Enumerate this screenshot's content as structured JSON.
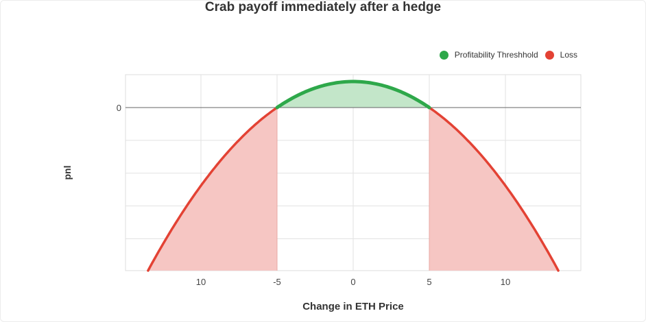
{
  "chart_data": {
    "type": "area",
    "title": "Crab payoff immediately after a hedge",
    "xlabel": "Change in ETH Price",
    "ylabel": "pnl",
    "x_tick_labels": [
      "10",
      "-5",
      "0",
      "5",
      "10"
    ],
    "y_tick_labels": [
      "0"
    ],
    "xlim": [
      -15,
      15
    ],
    "breakeven_points": [
      -5,
      5
    ],
    "curve": {
      "shape": "inverted parabola",
      "vertex": [
        0,
        1
      ],
      "zero_crossings": [
        -5,
        5
      ]
    },
    "series": [
      {
        "name": "Profitability Threshhold",
        "color": "#2ea84a",
        "fill": "#c3e6c9",
        "x_range": [
          -5,
          5
        ]
      },
      {
        "name": "Loss",
        "color": "#e34234",
        "fill": "#f6c6c3",
        "x_range": [
          -12.8,
          12.8
        ]
      }
    ],
    "legend_position": "top-right",
    "grid": true
  }
}
